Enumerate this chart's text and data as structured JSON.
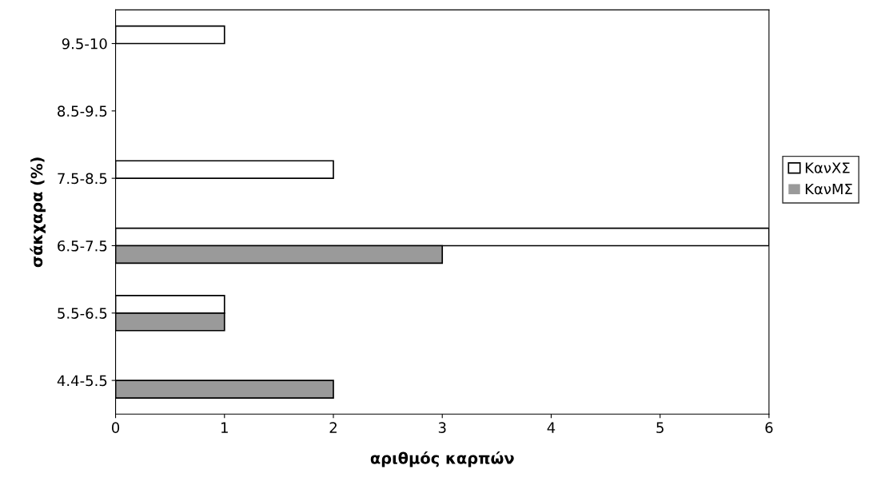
{
  "chart_data": {
    "type": "bar",
    "orientation": "horizontal",
    "xlabel": "αριθμός καρπών",
    "ylabel": "σάκχαρα (%)",
    "categories": [
      "9.5-10",
      "8.5-9.5",
      "7.5-8.5",
      "6.5-7.5",
      "5.5-6.5",
      "4.4-5.5"
    ],
    "series": [
      {
        "name": "ΚανΧΣ",
        "color": "#ffffff",
        "values": [
          1,
          0,
          2,
          6,
          1,
          0
        ]
      },
      {
        "name": "ΚανΜΣ",
        "color": "#9a9a9a",
        "values": [
          0,
          0,
          0,
          3,
          1,
          2
        ]
      }
    ],
    "xlim": [
      0,
      6
    ],
    "xticks": [
      0,
      1,
      2,
      3,
      4,
      5,
      6
    ],
    "grid": false,
    "legend": "right"
  }
}
